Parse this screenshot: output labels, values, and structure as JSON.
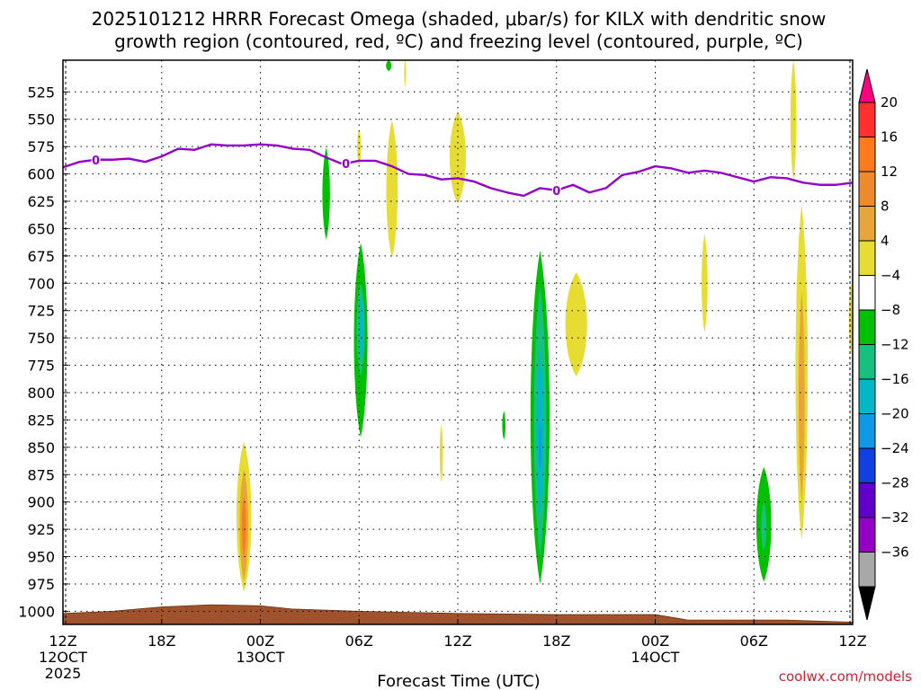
{
  "chart_data": {
    "type": "heatmap",
    "title_line1": "2025101212 HRRR Forecast Omega (shaded, μbar/s) for KILX with dendritic snow",
    "title_line2": "growth region (contoured, red, ºC) and freezing level (contoured, purple, ºC)",
    "xlabel": "Forecast Time (UTC)",
    "credit": "coolwx.com/models",
    "y_ticks": [
      525,
      550,
      575,
      600,
      625,
      650,
      675,
      700,
      725,
      750,
      775,
      800,
      825,
      850,
      875,
      900,
      925,
      950,
      975,
      1000
    ],
    "y_range": [
      1012,
      496
    ],
    "x_range": [
      0,
      48
    ],
    "x_ticks": [
      {
        "hour": 0,
        "line1": "12Z",
        "line2": "12OCT",
        "line3": "2025"
      },
      {
        "hour": 6,
        "line1": "18Z",
        "line2": "",
        "line3": ""
      },
      {
        "hour": 12,
        "line1": "00Z",
        "line2": "13OCT",
        "line3": ""
      },
      {
        "hour": 18,
        "line1": "06Z",
        "line2": "",
        "line3": ""
      },
      {
        "hour": 24,
        "line1": "12Z",
        "line2": "",
        "line3": ""
      },
      {
        "hour": 30,
        "line1": "18Z",
        "line2": "",
        "line3": ""
      },
      {
        "hour": 36,
        "line1": "00Z",
        "line2": "14OCT",
        "line3": ""
      },
      {
        "hour": 42,
        "line1": "06Z",
        "line2": "",
        "line3": ""
      },
      {
        "hour": 48,
        "line1": "12Z",
        "line2": "",
        "line3": ""
      }
    ],
    "grid": true,
    "colorbar": {
      "labels": [
        "20",
        "16",
        "12",
        "8",
        "4",
        "−4",
        "−8",
        "−12",
        "−16",
        "−20",
        "−24",
        "−28",
        "−32",
        "−36"
      ],
      "colors": [
        "#ff0080",
        "#ff3030",
        "#ff7a1a",
        "#ec8a2c",
        "#e7a53a",
        "#e6dc32",
        "#ffffff",
        "#00c000",
        "#18c080",
        "#00b8c8",
        "#1098e8",
        "#1040e0",
        "#6000c8",
        "#9400c8",
        "#a8a8a8",
        "#000000"
      ]
    },
    "freezing_level": {
      "label": "0",
      "color": "#9400c8",
      "label_hours": [
        2,
        17.2,
        30
      ],
      "points": [
        [
          0,
          594
        ],
        [
          1,
          589
        ],
        [
          2,
          587
        ],
        [
          3,
          587
        ],
        [
          4,
          586
        ],
        [
          5,
          589
        ],
        [
          6,
          584
        ],
        [
          7,
          577
        ],
        [
          8,
          578
        ],
        [
          9,
          573
        ],
        [
          10,
          574
        ],
        [
          11,
          574
        ],
        [
          12,
          573
        ],
        [
          13,
          574
        ],
        [
          14,
          577
        ],
        [
          15,
          578
        ],
        [
          16,
          585
        ],
        [
          17,
          591
        ],
        [
          18,
          588
        ],
        [
          19,
          588
        ],
        [
          20,
          593
        ],
        [
          21,
          600
        ],
        [
          22,
          601
        ],
        [
          23,
          605
        ],
        [
          24,
          604
        ],
        [
          25,
          607
        ],
        [
          26,
          613
        ],
        [
          27,
          617
        ],
        [
          28,
          620
        ],
        [
          29,
          613
        ],
        [
          30,
          615
        ],
        [
          31,
          610
        ],
        [
          32,
          617
        ],
        [
          33,
          613
        ],
        [
          34,
          601
        ],
        [
          35,
          598
        ],
        [
          36,
          593
        ],
        [
          37,
          595
        ],
        [
          38,
          599
        ],
        [
          39,
          597
        ],
        [
          40,
          599
        ],
        [
          41,
          603
        ],
        [
          42,
          607
        ],
        [
          43,
          603
        ],
        [
          44,
          604
        ],
        [
          45,
          608
        ],
        [
          46,
          610
        ],
        [
          47,
          610
        ],
        [
          48,
          608
        ]
      ]
    },
    "omega_regions": [
      {
        "value": 4,
        "color": "#e6dc32",
        "hour": 11.0,
        "p_top": 845,
        "p_bottom": 982,
        "half_width_h": 0.55
      },
      {
        "value": 8,
        "color": "#e7a53a",
        "hour": 11.0,
        "p_top": 870,
        "p_bottom": 972,
        "half_width_h": 0.32
      },
      {
        "value": 12,
        "color": "#ff7a1a",
        "hour": 11.0,
        "p_top": 895,
        "p_bottom": 950,
        "half_width_h": 0.15
      },
      {
        "value": -4,
        "color": "#00c000",
        "hour": 16.0,
        "p_top": 576,
        "p_bottom": 660,
        "half_width_h": 0.28
      },
      {
        "value": 4,
        "color": "#e6dc32",
        "hour": 18.0,
        "p_top": 559,
        "p_bottom": 593,
        "half_width_h": 0.14
      },
      {
        "value": 4,
        "color": "#e6dc32",
        "hour": 20.0,
        "p_top": 551,
        "p_bottom": 677,
        "half_width_h": 0.42
      },
      {
        "value": -4,
        "color": "#00c000",
        "hour": 18.1,
        "p_top": 663,
        "p_bottom": 841,
        "half_width_h": 0.5
      },
      {
        "value": -8,
        "color": "#18c080",
        "hour": 18.1,
        "p_top": 700,
        "p_bottom": 785,
        "half_width_h": 0.3
      },
      {
        "value": -12,
        "color": "#00b8c8",
        "hour": 18.1,
        "p_top": 710,
        "p_bottom": 770,
        "half_width_h": 0.15
      },
      {
        "value": 4,
        "color": "#e6dc32",
        "hour": 24.0,
        "p_top": 543,
        "p_bottom": 627,
        "half_width_h": 0.6
      },
      {
        "value": -4,
        "color": "#00c000",
        "hour": 26.8,
        "p_top": 817,
        "p_bottom": 843,
        "half_width_h": 0.12
      },
      {
        "value": 4,
        "color": "#e6dc32",
        "hour": 23.0,
        "p_top": 829,
        "p_bottom": 882,
        "half_width_h": 0.12
      },
      {
        "value": -4,
        "color": "#00c000",
        "hour": 29.0,
        "p_top": 670,
        "p_bottom": 975,
        "half_width_h": 0.7
      },
      {
        "value": -8,
        "color": "#18c080",
        "hour": 29.0,
        "p_top": 703,
        "p_bottom": 950,
        "half_width_h": 0.45
      },
      {
        "value": -12,
        "color": "#00b8c8",
        "hour": 29.0,
        "p_top": 760,
        "p_bottom": 912,
        "half_width_h": 0.25
      },
      {
        "value": -16,
        "color": "#1098e8",
        "hour": 29.0,
        "p_top": 830,
        "p_bottom": 870,
        "half_width_h": 0.1
      },
      {
        "value": 4,
        "color": "#e6dc32",
        "hour": 31.2,
        "p_top": 690,
        "p_bottom": 785,
        "half_width_h": 0.8
      },
      {
        "value": 4,
        "color": "#e6dc32",
        "hour": 39.0,
        "p_top": 655,
        "p_bottom": 745,
        "half_width_h": 0.22
      },
      {
        "value": -4,
        "color": "#00c000",
        "hour": 42.6,
        "p_top": 868,
        "p_bottom": 973,
        "half_width_h": 0.55
      },
      {
        "value": -8,
        "color": "#18c080",
        "hour": 42.6,
        "p_top": 900,
        "p_bottom": 945,
        "half_width_h": 0.2
      },
      {
        "value": 4,
        "color": "#e6dc32",
        "hour": 44.4,
        "p_top": 496,
        "p_bottom": 605,
        "half_width_h": 0.22
      },
      {
        "value": 4,
        "color": "#e6dc32",
        "hour": 44.9,
        "p_top": 628,
        "p_bottom": 935,
        "half_width_h": 0.45
      },
      {
        "value": 8,
        "color": "#e7a53a",
        "hour": 44.9,
        "p_top": 708,
        "p_bottom": 900,
        "half_width_h": 0.22
      },
      {
        "value": 4,
        "color": "#e6dc32",
        "hour": 47.9,
        "p_top": 700,
        "p_bottom": 765,
        "half_width_h": 0.15
      },
      {
        "value": 4,
        "color": "#e6dc32",
        "hour": 20.8,
        "p_top": 496,
        "p_bottom": 520,
        "half_width_h": 0.07
      },
      {
        "value": -4,
        "color": "#00c000",
        "hour": 19.8,
        "p_top": 496,
        "p_bottom": 506,
        "half_width_h": 0.2
      }
    ],
    "terrain": {
      "color": "#a0522d",
      "points": [
        [
          0,
          1002
        ],
        [
          3,
          1000
        ],
        [
          6,
          996
        ],
        [
          9,
          994
        ],
        [
          12,
          995
        ],
        [
          14,
          998
        ],
        [
          18,
          1000
        ],
        [
          24,
          1002
        ],
        [
          30,
          1003
        ],
        [
          36,
          1003
        ],
        [
          38,
          1008
        ],
        [
          44,
          1008
        ],
        [
          48,
          1010
        ]
      ]
    }
  }
}
